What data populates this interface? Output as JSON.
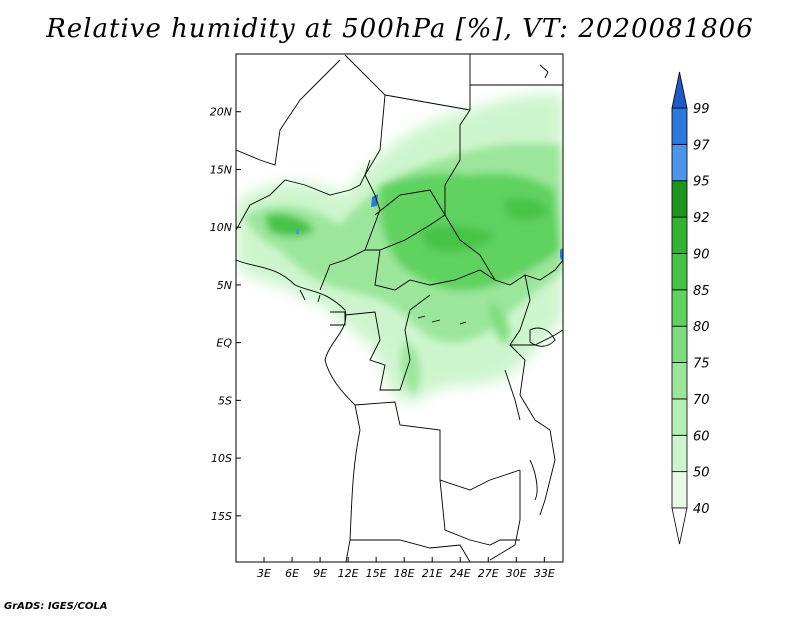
{
  "title": "Relative humidity at 500hPa [%], VT: 2020081806",
  "footer": "GrADS: IGES/COLA",
  "map": {
    "lat_range": [
      -19,
      25
    ],
    "lon_range": [
      0,
      35
    ],
    "lat_ticks": [
      "20N",
      "15N",
      "10N",
      "5N",
      "EQ",
      "5S",
      "10S",
      "15S"
    ],
    "lat_tick_values": [
      20,
      15,
      10,
      5,
      0,
      -5,
      -10,
      -15
    ],
    "lon_ticks": [
      "3E",
      "6E",
      "9E",
      "12E",
      "15E",
      "18E",
      "21E",
      "24E",
      "27E",
      "30E",
      "33E"
    ],
    "lon_tick_values": [
      3,
      6,
      9,
      12,
      15,
      18,
      21,
      24,
      27,
      30,
      33
    ]
  },
  "colorbar": {
    "levels": [
      "40",
      "50",
      "60",
      "70",
      "75",
      "80",
      "85",
      "90",
      "92",
      "95",
      "97",
      "99"
    ],
    "colors": [
      "#e6fae6",
      "#cdf5cd",
      "#b4f0b4",
      "#9be69b",
      "#7ddc7d",
      "#5fd25f",
      "#46c346",
      "#32b432",
      "#1e961e",
      "#4b96eb",
      "#2d78dc",
      "#1e5ac8"
    ],
    "below_color": "#ffffff",
    "above_color": "#1e5ac8"
  }
}
